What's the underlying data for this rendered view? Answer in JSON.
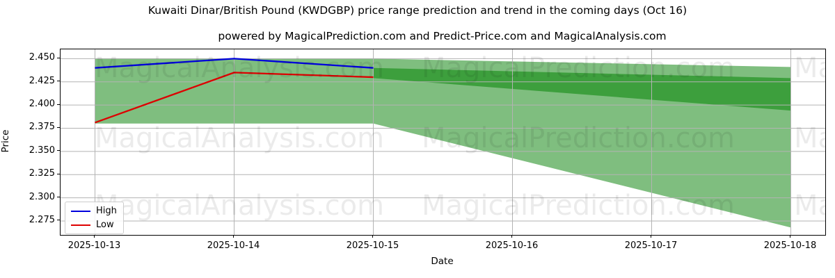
{
  "figure": {
    "title": "Kuwaiti Dinar/British Pound (KWDGBP) price range prediction and trend in the coming days (Oct 16)",
    "subtitle": "powered by MagicalPrediction.com and Predict-Price.com and MagicalAnalysis.com",
    "background": "#ffffff"
  },
  "watermarks": {
    "left_text": "MagicalAnalysis.com",
    "right_text": "MagicalPrediction.com",
    "partial_text": "Magical"
  },
  "chart_data": {
    "type": "line",
    "xlabel": "Date",
    "ylabel": "Price",
    "x_dates": [
      "2025-10-13",
      "2025-10-14",
      "2025-10-15",
      "2025-10-16",
      "2025-10-17",
      "2025-10-18"
    ],
    "yticks": [
      2.275,
      2.3,
      2.325,
      2.35,
      2.375,
      2.4,
      2.425,
      2.45
    ],
    "ylim": [
      2.26,
      2.46
    ],
    "xlim_days": [
      -0.2475,
      5.2475
    ],
    "grid": true,
    "grid_color": "#b3b3b3",
    "series": [
      {
        "name": "High",
        "color": "#0000dd",
        "x": [
          0,
          1,
          2
        ],
        "values": [
          2.44,
          2.45,
          2.44
        ]
      },
      {
        "name": "Low",
        "color": "#dd0000",
        "x": [
          0,
          1,
          2
        ],
        "values": [
          2.381,
          2.435,
          2.43
        ]
      }
    ],
    "bands": [
      {
        "name": "historical-range",
        "color": "#7fbe7f",
        "x": [
          0,
          2
        ],
        "top": [
          2.45,
          2.45
        ],
        "bottom": [
          2.38,
          2.38
        ]
      },
      {
        "name": "forecast-range-wide",
        "color": "#7fbe7f",
        "x": [
          2,
          5
        ],
        "top": [
          2.45,
          2.441
        ],
        "bottom": [
          2.38,
          2.268
        ]
      },
      {
        "name": "forecast-range-core",
        "color": "#3d9f3d",
        "x": [
          2,
          5
        ],
        "top": [
          2.44,
          2.429
        ],
        "bottom": [
          2.429,
          2.394
        ]
      }
    ],
    "legend": {
      "position": "lower left",
      "entries": [
        {
          "label": "High",
          "color": "#0000dd"
        },
        {
          "label": "Low",
          "color": "#dd0000"
        }
      ]
    }
  }
}
